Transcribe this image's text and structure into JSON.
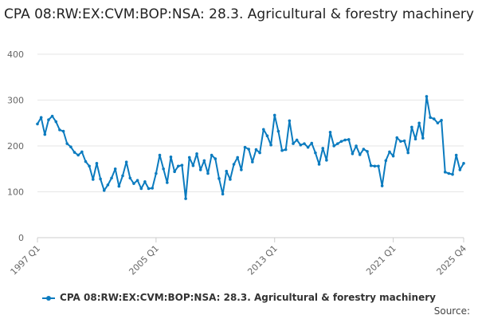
{
  "chart_data": {
    "type": "line",
    "title": "CPA 08:RW:EX:CVM:BOP:NSA: 28.3. Agricultural & forestry machinery",
    "xlabel": "",
    "ylabel": "",
    "ylim": [
      0,
      400
    ],
    "y_ticks": [
      "0",
      "100",
      "200",
      "300",
      "400"
    ],
    "x_ticks": [
      {
        "label": "1997 Q1",
        "index": 0
      },
      {
        "label": "2005 Q1",
        "index": 32
      },
      {
        "label": "2013 Q1",
        "index": 64
      },
      {
        "label": "2021 Q1",
        "index": 96
      },
      {
        "label": "2025 Q4",
        "index": 115
      }
    ],
    "grid": true,
    "legend_position": "bottom-center",
    "series": [
      {
        "name": "CPA 08:RW:EX:CVM:BOP:NSA: 28.3. Agricultural & forestry machinery",
        "color": "#0b7bbf",
        "values": [
          248,
          262,
          225,
          257,
          265,
          253,
          235,
          232,
          205,
          198,
          186,
          180,
          187,
          166,
          156,
          127,
          162,
          128,
          103,
          115,
          130,
          150,
          112,
          135,
          165,
          130,
          118,
          125,
          107,
          122,
          107,
          108,
          140,
          180,
          150,
          120,
          176,
          144,
          156,
          158,
          85,
          175,
          157,
          183,
          148,
          168,
          140,
          180,
          172,
          129,
          95,
          145,
          127,
          160,
          175,
          148,
          197,
          193,
          165,
          192,
          185,
          236,
          222,
          202,
          267,
          232,
          190,
          192,
          255,
          205,
          213,
          202,
          205,
          197,
          206,
          185,
          160,
          195,
          169,
          230,
          200,
          205,
          210,
          213,
          214,
          183,
          200,
          181,
          193,
          188,
          157,
          156,
          156,
          113,
          168,
          187,
          178,
          218,
          210,
          211,
          185,
          241,
          215,
          250,
          217,
          308,
          262,
          259,
          250,
          256,
          143,
          140,
          138,
          180,
          148,
          162
        ]
      }
    ]
  },
  "footer": {
    "legend_label": "CPA 08:RW:EX:CVM:BOP:NSA: 28.3. Agricultural & forestry machinery",
    "source_label": "Source:"
  }
}
